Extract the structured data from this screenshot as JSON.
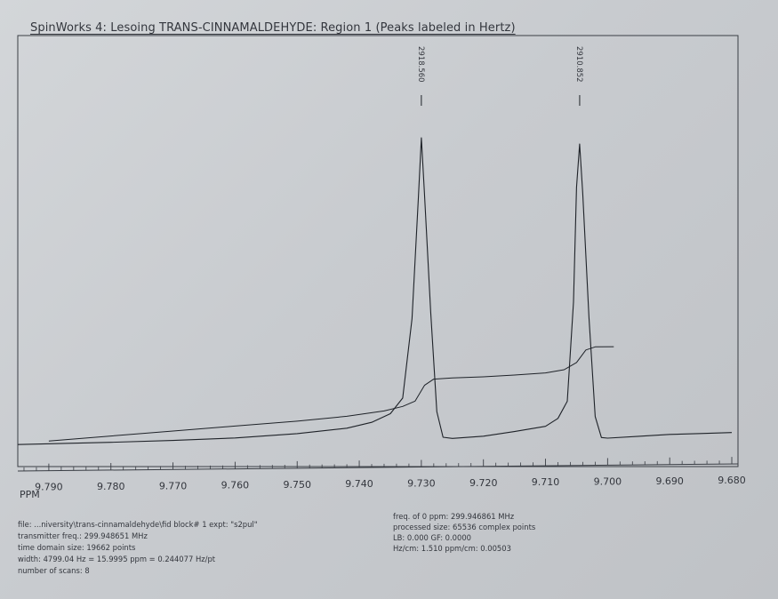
{
  "page": {
    "title": "SpinWorks 4: Lesoing TRANS-CINNAMALDEHYDE: Region 1 (Peaks labeled in Hertz)",
    "axis_unit_label": "PPM"
  },
  "chart_data": {
    "type": "line",
    "title": "SpinWorks 4: Lesoing TRANS-CINNAMALDEHYDE: Region 1 (Peaks labeled in Hertz)",
    "xlabel": "PPM",
    "ylabel": "",
    "x_reversed": true,
    "xlim": [
      9.795,
      9.679
    ],
    "x_ticks": [
      9.79,
      9.78,
      9.77,
      9.76,
      9.75,
      9.74,
      9.73,
      9.72,
      9.71,
      9.7,
      9.69,
      9.68
    ],
    "x_tick_labels": [
      "9.790",
      "9.780",
      "9.770",
      "9.760",
      "9.750",
      "9.740",
      "9.730",
      "9.720",
      "9.710",
      "9.700",
      "9.690",
      "9.680"
    ],
    "ylim": [
      0,
      1
    ],
    "grid": false,
    "peaks": [
      {
        "ppm": 9.73,
        "label": "2918.560",
        "height": 0.98
      },
      {
        "ppm": 9.7045,
        "label": "2910.852",
        "height": 0.96
      }
    ],
    "series": [
      {
        "kind": "spectrum",
        "x": [
          9.795,
          9.78,
          9.77,
          9.76,
          9.75,
          9.742,
          9.738,
          9.735,
          9.733,
          9.7315,
          9.7305,
          9.73,
          9.7295,
          9.7285,
          9.7275,
          9.7265,
          9.725,
          9.72,
          9.715,
          9.71,
          9.708,
          9.7065,
          9.7055,
          9.705,
          9.7045,
          9.704,
          9.703,
          9.702,
          9.701,
          9.7,
          9.695,
          9.69,
          9.685,
          9.68
        ],
        "y": [
          0.008,
          0.012,
          0.016,
          0.022,
          0.034,
          0.05,
          0.068,
          0.095,
          0.145,
          0.4,
          0.78,
          0.98,
          0.8,
          0.42,
          0.1,
          0.018,
          0.014,
          0.02,
          0.034,
          0.05,
          0.075,
          0.13,
          0.45,
          0.82,
          0.96,
          0.8,
          0.4,
          0.08,
          0.012,
          0.01,
          0.015,
          0.02,
          0.022,
          0.024
        ]
      },
      {
        "kind": "integral",
        "x": [
          9.79,
          9.78,
          9.77,
          9.76,
          9.75,
          9.742,
          9.736,
          9.733,
          9.731,
          9.7295,
          9.728,
          9.725,
          9.72,
          9.715,
          9.71,
          9.707,
          9.705,
          9.7035,
          9.702,
          9.699
        ],
        "y": [
          0.018,
          0.032,
          0.046,
          0.06,
          0.074,
          0.088,
          0.104,
          0.118,
          0.135,
          0.185,
          0.205,
          0.208,
          0.211,
          0.216,
          0.222,
          0.232,
          0.255,
          0.295,
          0.305,
          0.305
        ]
      }
    ]
  },
  "info_left": [
    "file: ...niversity\\trans-cinnamaldehyde\\fid  block# 1  expt: \"s2pul\"",
    "transmitter freq.: 299.948651 MHz",
    "time domain size: 19662 points",
    "width: 4799.04 Hz = 15.9995 ppm = 0.244077 Hz/pt",
    "number of scans: 8"
  ],
  "info_right": [
    "freq. of 0 ppm: 299.946861 MHz",
    "processed size: 65536 complex points",
    "LB: 0.000   GF: 0.0000",
    "Hz/cm: 1.510   ppm/cm: 0.00503"
  ],
  "colors": {
    "trace": "#1e2228",
    "frame": "#3a3e45",
    "text": "#33363d"
  }
}
